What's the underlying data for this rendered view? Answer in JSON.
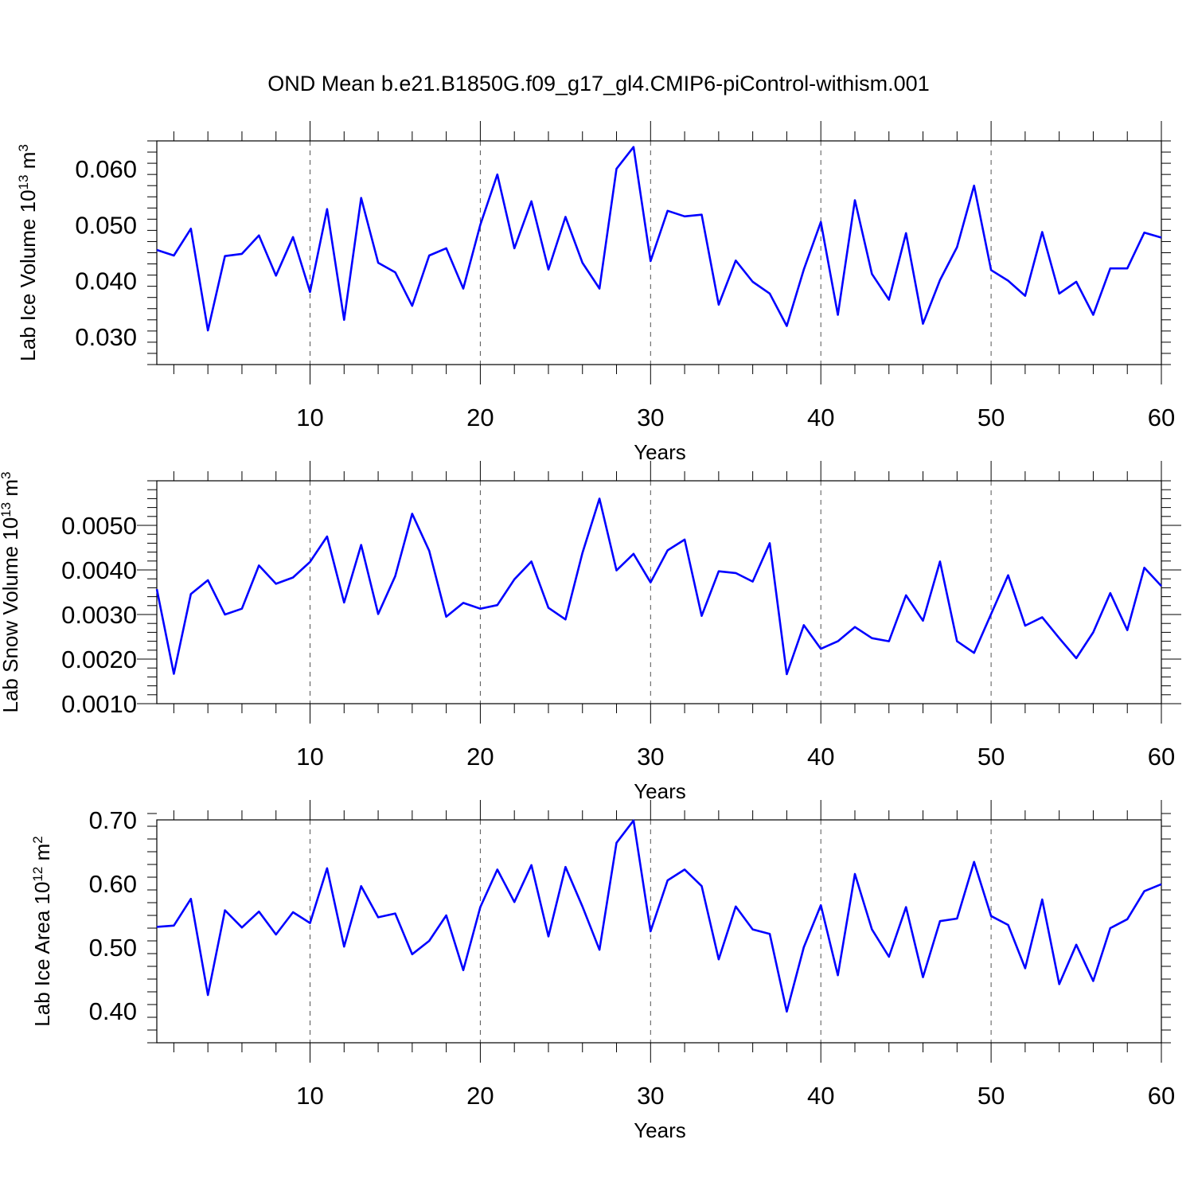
{
  "title": "OND Mean b.e21.B1850G.f09_g17_gl4.CMIP6-piControl-withism.001",
  "chart_data": [
    {
      "type": "line",
      "panel": "lab-ice-volume",
      "ylabel_text": "Lab Ice Volume 10",
      "ylabel_sup1": "13",
      "ylabel_unit": " m",
      "ylabel_sup2": "3",
      "xlabel": "Years",
      "xlim": [
        1,
        60
      ],
      "ylim": [
        0.025,
        0.065
      ],
      "yticks": [
        0.03,
        0.04,
        0.05,
        0.06
      ],
      "ytick_labels": [
        "0.030",
        "0.040",
        "0.050",
        "0.060"
      ],
      "xticks": [
        10,
        20,
        30,
        40,
        50,
        60
      ],
      "xtick_labels": [
        "10",
        "20",
        "30",
        "40",
        "50",
        "60"
      ],
      "grid": "vertical dashed at major x ticks",
      "color": "#0000ff",
      "x": [
        1,
        2,
        3,
        4,
        5,
        6,
        7,
        8,
        9,
        10,
        11,
        12,
        13,
        14,
        15,
        16,
        17,
        18,
        19,
        20,
        21,
        22,
        23,
        24,
        25,
        26,
        27,
        28,
        29,
        30,
        31,
        32,
        33,
        34,
        35,
        36,
        37,
        38,
        39,
        40,
        41,
        42,
        43,
        44,
        45,
        46,
        47,
        48,
        49,
        50,
        51,
        52,
        53,
        54,
        55,
        56,
        57,
        58,
        59,
        60
      ],
      "values": [
        0.0455,
        0.0445,
        0.0493,
        0.0311,
        0.0444,
        0.0448,
        0.0481,
        0.0409,
        0.0478,
        0.038,
        0.0528,
        0.033,
        0.0548,
        0.0432,
        0.0415,
        0.0355,
        0.0445,
        0.0458,
        0.0386,
        0.05,
        0.059,
        0.0458,
        0.0542,
        0.042,
        0.0514,
        0.0432,
        0.0386,
        0.06,
        0.0639,
        0.0435,
        0.0525,
        0.0515,
        0.0518,
        0.0357,
        0.0436,
        0.0398,
        0.0377,
        0.0319,
        0.042,
        0.0505,
        0.0339,
        0.0544,
        0.0412,
        0.0366,
        0.0485,
        0.0323,
        0.0401,
        0.046,
        0.057,
        0.0419,
        0.04,
        0.0373,
        0.0487,
        0.0377,
        0.0398,
        0.0339,
        0.0422,
        0.0422,
        0.0486,
        0.0477
      ]
    },
    {
      "type": "line",
      "panel": "lab-snow-volume",
      "ylabel_text": "Lab Snow Volume 10",
      "ylabel_sup1": "13",
      "ylabel_unit": " m",
      "ylabel_sup2": "3",
      "xlabel": "Years",
      "xlim": [
        1,
        60
      ],
      "ylim": [
        0.001,
        0.006
      ],
      "yticks": [
        0.001,
        0.002,
        0.003,
        0.004,
        0.005
      ],
      "ytick_labels": [
        "0.0010",
        "0.0020",
        "0.0030",
        "0.0040",
        "0.0050"
      ],
      "xticks": [
        10,
        20,
        30,
        40,
        50,
        60
      ],
      "xtick_labels": [
        "10",
        "20",
        "30",
        "40",
        "50",
        "60"
      ],
      "grid": "vertical dashed at major x ticks",
      "color": "#0000ff",
      "x": [
        1,
        2,
        3,
        4,
        5,
        6,
        7,
        8,
        9,
        10,
        11,
        12,
        13,
        14,
        15,
        16,
        17,
        18,
        19,
        20,
        21,
        22,
        23,
        24,
        25,
        26,
        27,
        28,
        29,
        30,
        31,
        32,
        33,
        34,
        35,
        36,
        37,
        38,
        39,
        40,
        41,
        42,
        43,
        44,
        45,
        46,
        47,
        48,
        49,
        50,
        51,
        52,
        53,
        54,
        55,
        56,
        57,
        58,
        59,
        60
      ],
      "values": [
        0.00357,
        0.00167,
        0.00346,
        0.00377,
        0.003,
        0.00313,
        0.0041,
        0.00369,
        0.00383,
        0.00418,
        0.00475,
        0.00327,
        0.00456,
        0.00301,
        0.00386,
        0.00526,
        0.00443,
        0.00295,
        0.00326,
        0.00313,
        0.00321,
        0.00379,
        0.00419,
        0.00315,
        0.00289,
        0.00438,
        0.0056,
        0.00399,
        0.00436,
        0.00372,
        0.00444,
        0.00468,
        0.00297,
        0.00397,
        0.00393,
        0.00374,
        0.0046,
        0.00166,
        0.00276,
        0.00223,
        0.0024,
        0.00272,
        0.00247,
        0.0024,
        0.00343,
        0.00286,
        0.00419,
        0.0024,
        0.00214,
        0.00301,
        0.00388,
        0.00275,
        0.00294,
        0.00247,
        0.00202,
        0.0026,
        0.00348,
        0.00265,
        0.00405,
        0.00364
      ]
    },
    {
      "type": "line",
      "panel": "lab-ice-area",
      "ylabel_text": "Lab Ice Area 10",
      "ylabel_sup1": "12",
      "ylabel_unit": " m",
      "ylabel_sup2": "2",
      "xlabel": "Years",
      "xlim": [
        1,
        60
      ],
      "ylim": [
        0.35,
        0.7
      ],
      "yticks": [
        0.4,
        0.5,
        0.6,
        0.7
      ],
      "ytick_labels": [
        "0.40",
        "0.50",
        "0.60",
        "0.70"
      ],
      "xticks": [
        10,
        20,
        30,
        40,
        50,
        60
      ],
      "xtick_labels": [
        "10",
        "20",
        "30",
        "40",
        "50",
        "60"
      ],
      "grid": "vertical dashed at major x ticks",
      "color": "#0000ff",
      "x": [
        1,
        2,
        3,
        4,
        5,
        6,
        7,
        8,
        9,
        10,
        11,
        12,
        13,
        14,
        15,
        16,
        17,
        18,
        19,
        20,
        21,
        22,
        23,
        24,
        25,
        26,
        27,
        28,
        29,
        30,
        31,
        32,
        33,
        34,
        35,
        36,
        37,
        38,
        39,
        40,
        41,
        42,
        43,
        44,
        45,
        46,
        47,
        48,
        49,
        50,
        51,
        52,
        53,
        54,
        55,
        56,
        57,
        58,
        59,
        60
      ],
      "values": [
        0.532,
        0.534,
        0.576,
        0.425,
        0.558,
        0.531,
        0.556,
        0.52,
        0.555,
        0.538,
        0.624,
        0.501,
        0.596,
        0.547,
        0.553,
        0.489,
        0.51,
        0.55,
        0.464,
        0.563,
        0.622,
        0.571,
        0.629,
        0.517,
        0.626,
        0.564,
        0.496,
        0.664,
        0.699,
        0.525,
        0.605,
        0.622,
        0.596,
        0.481,
        0.564,
        0.528,
        0.521,
        0.399,
        0.5,
        0.566,
        0.456,
        0.615,
        0.528,
        0.485,
        0.563,
        0.453,
        0.541,
        0.545,
        0.634,
        0.549,
        0.535,
        0.467,
        0.575,
        0.442,
        0.504,
        0.447,
        0.53,
        0.544,
        0.588,
        0.599
      ]
    }
  ]
}
